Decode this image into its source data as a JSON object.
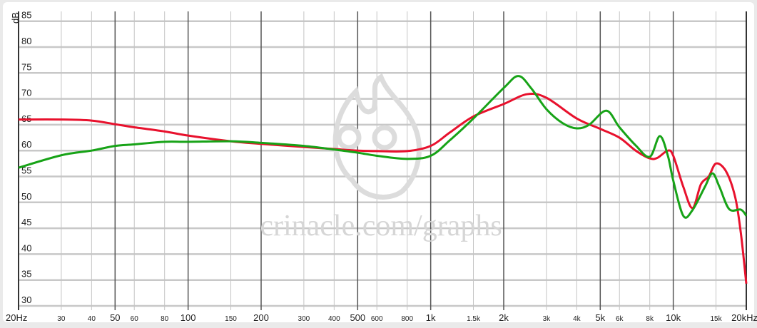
{
  "chart_data": {
    "type": "line",
    "title": "",
    "xlabel": "",
    "ylabel": "dB",
    "x_scale": "log",
    "xlim": [
      20,
      20000
    ],
    "ylim": [
      30,
      85
    ],
    "grid": true,
    "watermark": "crinacle.com/graphs",
    "y_ticks": [
      "30",
      "35",
      "40",
      "45",
      "50",
      "55",
      "60",
      "65",
      "70",
      "75",
      "80",
      "85"
    ],
    "x_ticks": [
      {
        "value": 20,
        "label": "20Hz",
        "major": true
      },
      {
        "value": 30,
        "label": "30",
        "major": false
      },
      {
        "value": 40,
        "label": "40",
        "major": false
      },
      {
        "value": 50,
        "label": "50",
        "major": true
      },
      {
        "value": 60,
        "label": "60",
        "major": false
      },
      {
        "value": 80,
        "label": "80",
        "major": false
      },
      {
        "value": 100,
        "label": "100",
        "major": true
      },
      {
        "value": 150,
        "label": "150",
        "major": false
      },
      {
        "value": 200,
        "label": "200",
        "major": true
      },
      {
        "value": 300,
        "label": "300",
        "major": false
      },
      {
        "value": 400,
        "label": "400",
        "major": false
      },
      {
        "value": 500,
        "label": "500",
        "major": true
      },
      {
        "value": 600,
        "label": "600",
        "major": false
      },
      {
        "value": 800,
        "label": "800",
        "major": false
      },
      {
        "value": 1000,
        "label": "1k",
        "major": true
      },
      {
        "value": 1500,
        "label": "1.5k",
        "major": false
      },
      {
        "value": 2000,
        "label": "2k",
        "major": true
      },
      {
        "value": 3000,
        "label": "3k",
        "major": false
      },
      {
        "value": 4000,
        "label": "4k",
        "major": false
      },
      {
        "value": 5000,
        "label": "5k",
        "major": true
      },
      {
        "value": 6000,
        "label": "6k",
        "major": false
      },
      {
        "value": 8000,
        "label": "8k",
        "major": false
      },
      {
        "value": 10000,
        "label": "10k",
        "major": true
      },
      {
        "value": 15000,
        "label": "15k",
        "major": false
      },
      {
        "value": 20000,
        "label": "20kHz",
        "major": true
      }
    ],
    "series": [
      {
        "color": "#e8112d",
        "points": [
          [
            20,
            66
          ],
          [
            30,
            66
          ],
          [
            40,
            65.8
          ],
          [
            50,
            65.1
          ],
          [
            60,
            64.5
          ],
          [
            80,
            63.7
          ],
          [
            100,
            62.9
          ],
          [
            150,
            61.8
          ],
          [
            200,
            61.3
          ],
          [
            300,
            60.7
          ],
          [
            400,
            60.3
          ],
          [
            500,
            60
          ],
          [
            600,
            59.9
          ],
          [
            800,
            59.9
          ],
          [
            1000,
            60.9
          ],
          [
            1200,
            63.5
          ],
          [
            1500,
            66.6
          ],
          [
            2000,
            69
          ],
          [
            2500,
            70.9
          ],
          [
            3000,
            70.2
          ],
          [
            4000,
            66.2
          ],
          [
            5000,
            64.2
          ],
          [
            6000,
            62.5
          ],
          [
            7000,
            60
          ],
          [
            8000,
            58.5
          ],
          [
            8600,
            58.6
          ],
          [
            9500,
            60
          ],
          [
            10000,
            59
          ],
          [
            11000,
            53
          ],
          [
            12000,
            48.9
          ],
          [
            13000,
            53.5
          ],
          [
            14000,
            55
          ],
          [
            15000,
            57.5
          ],
          [
            16500,
            56
          ],
          [
            18000,
            51
          ],
          [
            19000,
            44
          ],
          [
            20000,
            34.3
          ]
        ]
      },
      {
        "color": "#17a317",
        "points": [
          [
            20,
            56.7
          ],
          [
            30,
            59.1
          ],
          [
            40,
            60
          ],
          [
            50,
            60.9
          ],
          [
            60,
            61.2
          ],
          [
            80,
            61.7
          ],
          [
            100,
            61.7
          ],
          [
            150,
            61.8
          ],
          [
            200,
            61.5
          ],
          [
            300,
            60.9
          ],
          [
            400,
            60.2
          ],
          [
            500,
            59.6
          ],
          [
            600,
            59
          ],
          [
            800,
            58.4
          ],
          [
            1000,
            59
          ],
          [
            1200,
            62
          ],
          [
            1500,
            66.2
          ],
          [
            2000,
            72.1
          ],
          [
            2300,
            74.4
          ],
          [
            2600,
            72
          ],
          [
            3000,
            68
          ],
          [
            3500,
            65.3
          ],
          [
            4000,
            64.3
          ],
          [
            4500,
            65
          ],
          [
            5300,
            67.7
          ],
          [
            6000,
            64.5
          ],
          [
            7000,
            61
          ],
          [
            8000,
            58.8
          ],
          [
            8800,
            62.8
          ],
          [
            9500,
            59
          ],
          [
            10000,
            54.2
          ],
          [
            11000,
            47.4
          ],
          [
            12000,
            48.5
          ],
          [
            13500,
            53
          ],
          [
            14500,
            55.6
          ],
          [
            15500,
            53
          ],
          [
            17000,
            48.7
          ],
          [
            19000,
            48.6
          ],
          [
            20000,
            47.4
          ]
        ]
      }
    ]
  }
}
